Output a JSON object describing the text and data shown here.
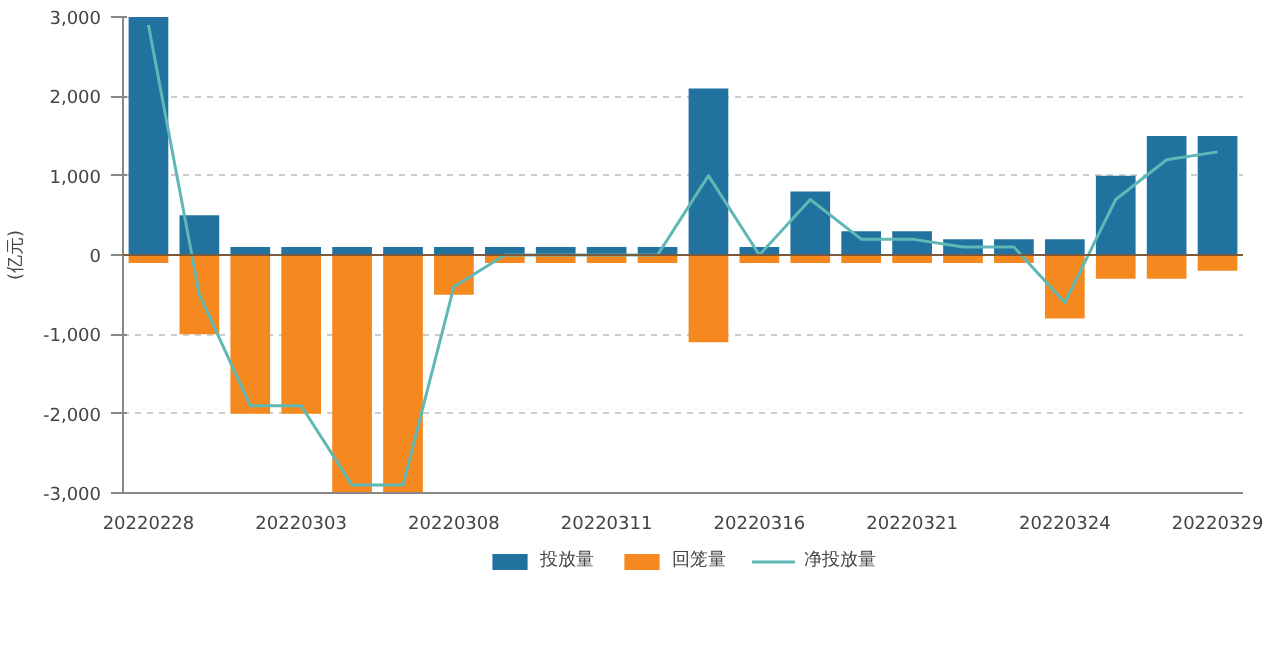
{
  "chart_data": {
    "type": "bar",
    "ylabel": "(亿元)",
    "categories": [
      "20220228",
      null,
      null,
      "20220303",
      null,
      null,
      "20220308",
      null,
      null,
      "20220311",
      null,
      null,
      "20220316",
      null,
      null,
      "20220321",
      null,
      null,
      "20220324",
      null,
      null,
      "20220329"
    ],
    "series": [
      {
        "name": "投放量",
        "color": "#21729f",
        "values": [
          3000,
          500,
          100,
          100,
          100,
          100,
          100,
          100,
          100,
          100,
          100,
          2100,
          100,
          800,
          300,
          300,
          200,
          200,
          200,
          1000,
          1500,
          1500
        ]
      },
      {
        "name": "回笼量",
        "color": "#f5891f",
        "values": [
          -100,
          -1000,
          -2000,
          -2000,
          -3000,
          -3000,
          -500,
          -100,
          -100,
          -100,
          -100,
          -1100,
          -100,
          -100,
          -100,
          -100,
          -100,
          -100,
          -800,
          -300,
          -300,
          -200
        ]
      },
      {
        "name": "净投放量",
        "type": "line",
        "color": "#5fb8b6",
        "values": [
          2900,
          -500,
          -1900,
          -1900,
          -2900,
          -2900,
          -400,
          0,
          0,
          0,
          0,
          1000,
          0,
          700,
          200,
          200,
          100,
          100,
          -600,
          700,
          1200,
          1300
        ]
      }
    ],
    "ylim": [
      -3000,
      3000
    ],
    "yticks": [
      {
        "value": -3000,
        "label": "-3,000"
      },
      {
        "value": -2000,
        "label": "-2,000"
      },
      {
        "value": -1000,
        "label": "-1,000"
      },
      0,
      {
        "value": 1000,
        "label": "1,000"
      },
      {
        "value": 2000,
        "label": "2,000"
      },
      {
        "value": 3000,
        "label": "3,000"
      }
    ],
    "ref_lines": [
      {
        "axis": "y",
        "value": 0,
        "color": "#7a5a3a"
      }
    ],
    "stacked": true,
    "grid": "y",
    "legend": "bottom"
  }
}
